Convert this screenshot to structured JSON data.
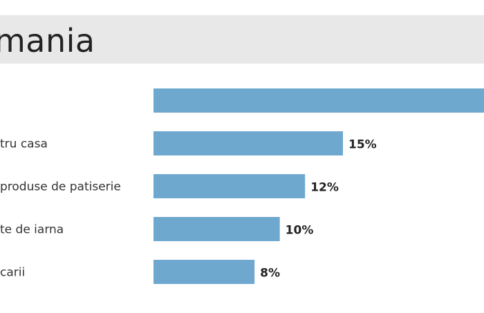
{
  "header": {
    "title": "mania"
  },
  "chart_data": {
    "type": "bar",
    "orientation": "horizontal",
    "title": "mania",
    "categories": [
      "",
      "tru casa",
      "produse de patiserie",
      "te de iarna",
      "carii"
    ],
    "values": [
      null,
      15,
      12,
      10,
      8
    ],
    "value_labels": [
      "",
      "15%",
      "12%",
      "10%",
      "8%"
    ],
    "unit": "%",
    "xlim": [
      0,
      15
    ],
    "bar_color": "#6fa8cf",
    "grid": false,
    "legend": "none"
  }
}
